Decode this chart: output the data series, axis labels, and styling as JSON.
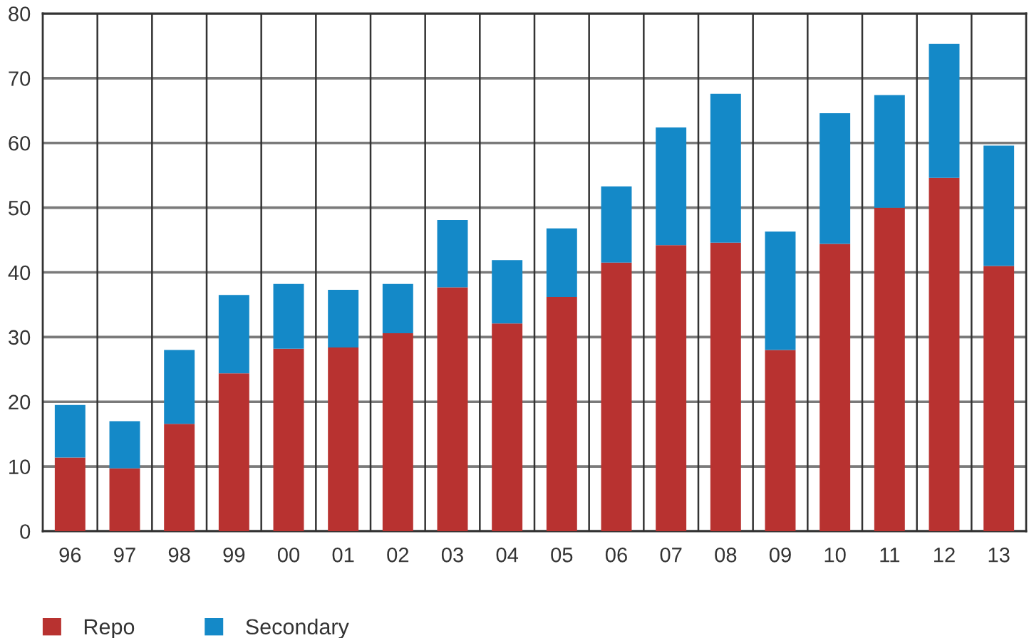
{
  "chart_data": {
    "type": "bar",
    "stacked": true,
    "categories": [
      "96",
      "97",
      "98",
      "99",
      "00",
      "01",
      "02",
      "03",
      "04",
      "05",
      "06",
      "07",
      "08",
      "09",
      "10",
      "11",
      "12",
      "13"
    ],
    "series": [
      {
        "name": "Repo",
        "color": "#b83230",
        "values": [
          11.4,
          9.7,
          16.6,
          24.4,
          28.2,
          28.4,
          30.6,
          37.7,
          32.1,
          36.2,
          41.5,
          44.2,
          44.6,
          28.0,
          44.4,
          50.0,
          54.6,
          41.0
        ]
      },
      {
        "name": "Secondary",
        "color": "#1489c8",
        "values": [
          8.1,
          7.3,
          11.4,
          12.1,
          10.0,
          8.9,
          7.6,
          10.4,
          9.8,
          10.6,
          11.8,
          18.2,
          23.0,
          18.3,
          20.2,
          17.4,
          20.7,
          18.6
        ]
      }
    ],
    "ylim": [
      0,
      80
    ],
    "yticks": [
      0,
      10,
      20,
      30,
      40,
      50,
      60,
      70,
      80
    ],
    "grid": true,
    "legend": "bottom left"
  }
}
